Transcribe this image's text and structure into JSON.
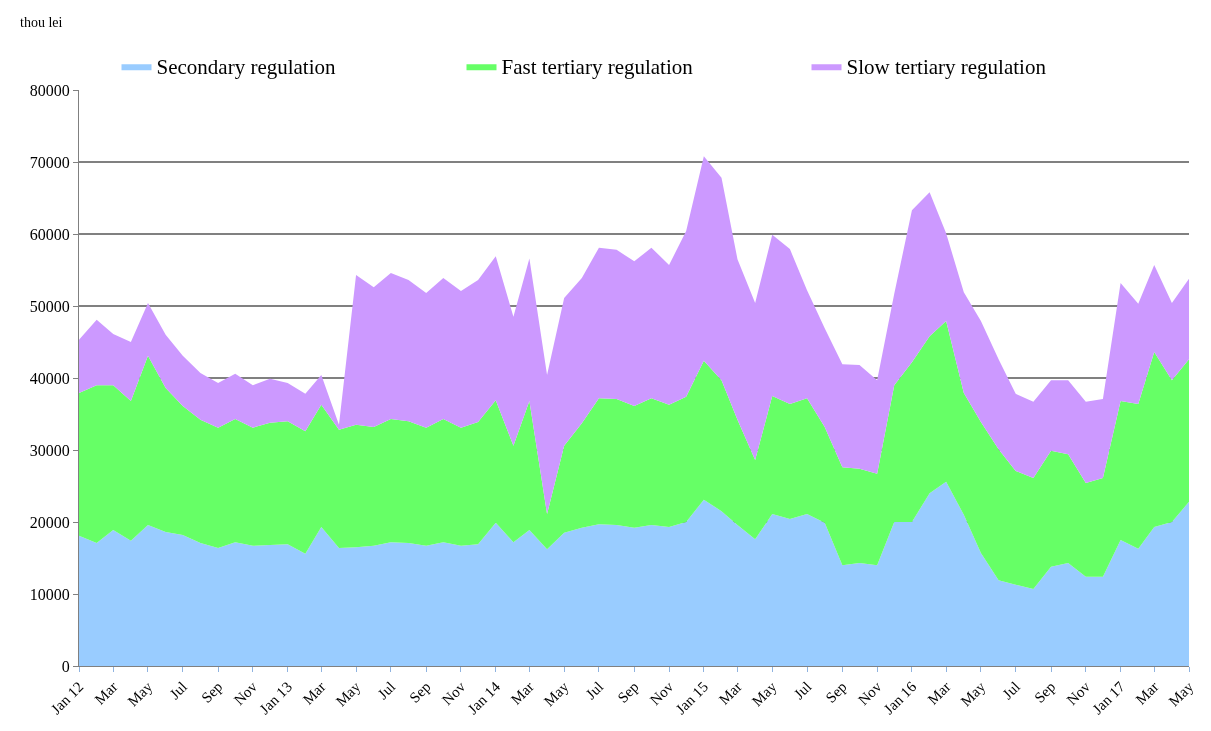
{
  "chart_data": {
    "type": "area",
    "stacked": true,
    "ylabel": "thou lei",
    "x": [
      "2012-01",
      "2012-02",
      "2012-03",
      "2012-04",
      "2012-05",
      "2012-06",
      "2012-07",
      "2012-08",
      "2012-09",
      "2012-10",
      "2012-11",
      "2012-12",
      "2013-01",
      "2013-02",
      "2013-03",
      "2013-04",
      "2013-05",
      "2013-06",
      "2013-07",
      "2013-08",
      "2013-09",
      "2013-10",
      "2013-11",
      "2013-12",
      "2014-01",
      "2014-02",
      "2014-03",
      "2014-04",
      "2014-05",
      "2014-06",
      "2014-07",
      "2014-08",
      "2014-09",
      "2014-10",
      "2014-11",
      "2014-12",
      "2015-01",
      "2015-02",
      "2015-03",
      "2015-04",
      "2015-05",
      "2015-06",
      "2015-07",
      "2015-08",
      "2015-09",
      "2015-10",
      "2015-11",
      "2015-12",
      "2016-01",
      "2016-02",
      "2016-03",
      "2016-04",
      "2016-05",
      "2016-06",
      "2016-07",
      "2016-08",
      "2016-09",
      "2016-10",
      "2016-11",
      "2016-12",
      "2017-01",
      "2017-02",
      "2017-03",
      "2017-04",
      "2017-05"
    ],
    "series": [
      {
        "name": "Secondary regulation",
        "color": "#99ccff",
        "values": [
          18100,
          17100,
          18900,
          17400,
          19600,
          18600,
          18200,
          17100,
          16400,
          17200,
          16700,
          16800,
          16900,
          15600,
          19300,
          16400,
          16500,
          16700,
          17200,
          17100,
          16700,
          17200,
          16700,
          16900,
          19900,
          17200,
          18900,
          16200,
          18500,
          19200,
          19700,
          19600,
          19200,
          19600,
          19300,
          20000,
          23100,
          21500,
          19600,
          17600,
          21100,
          20400,
          21100,
          19900,
          14000,
          14300,
          14000,
          20000,
          20000,
          24000,
          25600,
          21000,
          15700,
          11900,
          11300,
          10700,
          13800,
          14300,
          12400,
          12400,
          17500,
          16300,
          19300,
          20000,
          22800
        ]
      },
      {
        "name": "Fast tertiary regulation",
        "color": "#66ff66",
        "values": [
          19800,
          21900,
          20100,
          19400,
          23500,
          20000,
          17900,
          17100,
          16700,
          17100,
          16400,
          17000,
          17100,
          17000,
          17000,
          16400,
          17000,
          16500,
          17100,
          16900,
          16400,
          17100,
          16400,
          17000,
          17000,
          13400,
          17900,
          4900,
          12100,
          14500,
          17500,
          17500,
          16900,
          17600,
          17000,
          17400,
          19300,
          18200,
          14600,
          11000,
          16400,
          16000,
          16100,
          13300,
          13600,
          13100,
          12700,
          19000,
          22200,
          21800,
          22300,
          16900,
          18200,
          18200,
          15800,
          15400,
          16100,
          15100,
          13000,
          13700,
          19300,
          20100,
          24300,
          19700,
          19800
        ]
      },
      {
        "name": "Slow tertiary regulation",
        "color": "#cc99ff",
        "values": [
          7400,
          9100,
          7100,
          8200,
          7300,
          7400,
          7000,
          6500,
          6200,
          6300,
          5900,
          6100,
          5300,
          5200,
          4100,
          700,
          20800,
          19400,
          20300,
          19600,
          18700,
          19600,
          19000,
          19700,
          20000,
          17900,
          19800,
          19300,
          20500,
          20200,
          20900,
          20700,
          20100,
          20900,
          19400,
          23000,
          28400,
          28100,
          22300,
          21800,
          22400,
          21500,
          15000,
          13700,
          14300,
          14400,
          13000,
          12700,
          21100,
          20000,
          12200,
          14000,
          14000,
          12500,
          10700,
          10600,
          9800,
          10300,
          11300,
          11000,
          16400,
          13900,
          12100,
          10700,
          11200
        ]
      }
    ],
    "xlim": [
      "2012-01",
      "2017-05"
    ],
    "xticks": [
      {
        "value": "2012-01",
        "label": "Jan 12"
      },
      {
        "value": "2012-03",
        "label": "Mar"
      },
      {
        "value": "2012-05",
        "label": "May"
      },
      {
        "value": "2012-07",
        "label": "Jul"
      },
      {
        "value": "2012-09",
        "label": "Sep"
      },
      {
        "value": "2012-11",
        "label": "Nov"
      },
      {
        "value": "2013-01",
        "label": "Jan 13"
      },
      {
        "value": "2013-03",
        "label": "Mar"
      },
      {
        "value": "2013-05",
        "label": "May"
      },
      {
        "value": "2013-07",
        "label": "Jul"
      },
      {
        "value": "2013-09",
        "label": "Sep"
      },
      {
        "value": "2013-11",
        "label": "Nov"
      },
      {
        "value": "2014-01",
        "label": "Jan 14"
      },
      {
        "value": "2014-03",
        "label": "Mar"
      },
      {
        "value": "2014-05",
        "label": "May"
      },
      {
        "value": "2014-07",
        "label": "Jul"
      },
      {
        "value": "2014-09",
        "label": "Sep"
      },
      {
        "value": "2014-11",
        "label": "Nov"
      },
      {
        "value": "2015-01",
        "label": "Jan 15"
      },
      {
        "value": "2015-03",
        "label": "Mar"
      },
      {
        "value": "2015-05",
        "label": "May"
      },
      {
        "value": "2015-07",
        "label": "Jul"
      },
      {
        "value": "2015-09",
        "label": "Sep"
      },
      {
        "value": "2015-11",
        "label": "Nov"
      },
      {
        "value": "2016-01",
        "label": "Jan 16"
      },
      {
        "value": "2016-03",
        "label": "Mar"
      },
      {
        "value": "2016-05",
        "label": "May"
      },
      {
        "value": "2016-07",
        "label": "Jul"
      },
      {
        "value": "2016-09",
        "label": "Sep"
      },
      {
        "value": "2016-11",
        "label": "Nov"
      },
      {
        "value": "2017-01",
        "label": "Jan 17"
      },
      {
        "value": "2017-03",
        "label": "Mar"
      },
      {
        "value": "2017-05",
        "label": "May"
      }
    ],
    "ylim": [
      0,
      80000
    ],
    "yticks": [
      0,
      10000,
      20000,
      30000,
      40000,
      50000,
      60000,
      70000,
      80000
    ],
    "grid": "y",
    "legend": "top",
    "marker": "none"
  }
}
